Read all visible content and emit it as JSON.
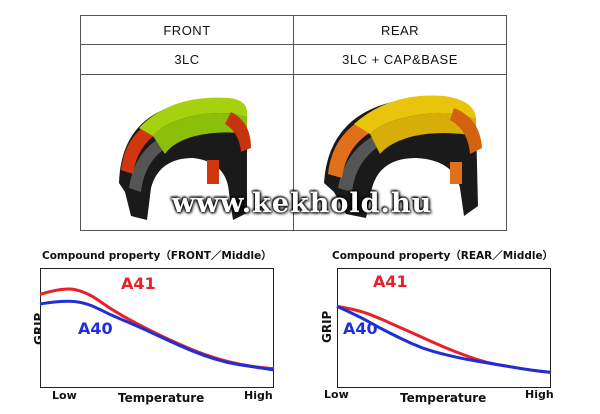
{
  "table": {
    "headers": [
      "FRONT",
      "REAR"
    ],
    "compounds": [
      "3LC",
      "3LC + CAP&BASE"
    ]
  },
  "tires": [
    {
      "name": "front-tire",
      "colors": {
        "tread": "#a6d10f",
        "shoulder": "#d1370e",
        "carcass": "#1a1a1a"
      }
    },
    {
      "name": "rear-tire",
      "colors": {
        "tread": "#e8c40c",
        "shoulder": "#e0701a",
        "carcass": "#1a1a1a"
      }
    }
  ],
  "watermark": "www.kekhold.hu",
  "colors": {
    "A41": "#e8202a",
    "A40": "#1e2fd6"
  },
  "chart_data": [
    {
      "type": "line",
      "title": "Compound property（FRONT／Middle）",
      "ylabel": "GRIP",
      "xlabel": "Temperature",
      "x_ticks": [
        "Low",
        "High"
      ],
      "x": [
        0,
        0.1,
        0.2,
        0.3,
        0.4,
        0.5,
        0.6,
        0.7,
        0.8,
        0.9,
        1.0
      ],
      "series": [
        {
          "name": "A41",
          "values": [
            0.78,
            0.84,
            0.8,
            0.66,
            0.55,
            0.45,
            0.36,
            0.28,
            0.22,
            0.18,
            0.16
          ]
        },
        {
          "name": "A40",
          "values": [
            0.7,
            0.73,
            0.71,
            0.61,
            0.53,
            0.44,
            0.35,
            0.27,
            0.21,
            0.18,
            0.15
          ]
        }
      ]
    },
    {
      "type": "line",
      "title": "Compound property（REAR／Middle）",
      "ylabel": "GRIP",
      "xlabel": "Temperature",
      "x_ticks": [
        "Low",
        "High"
      ],
      "x": [
        0,
        0.1,
        0.2,
        0.3,
        0.4,
        0.5,
        0.6,
        0.7,
        0.8,
        0.9,
        1.0
      ],
      "series": [
        {
          "name": "A41",
          "values": [
            0.68,
            0.65,
            0.58,
            0.5,
            0.42,
            0.34,
            0.27,
            0.21,
            0.18,
            0.15,
            0.13
          ]
        },
        {
          "name": "A40",
          "values": [
            0.68,
            0.6,
            0.5,
            0.41,
            0.33,
            0.28,
            0.24,
            0.21,
            0.18,
            0.15,
            0.13
          ]
        }
      ]
    }
  ]
}
